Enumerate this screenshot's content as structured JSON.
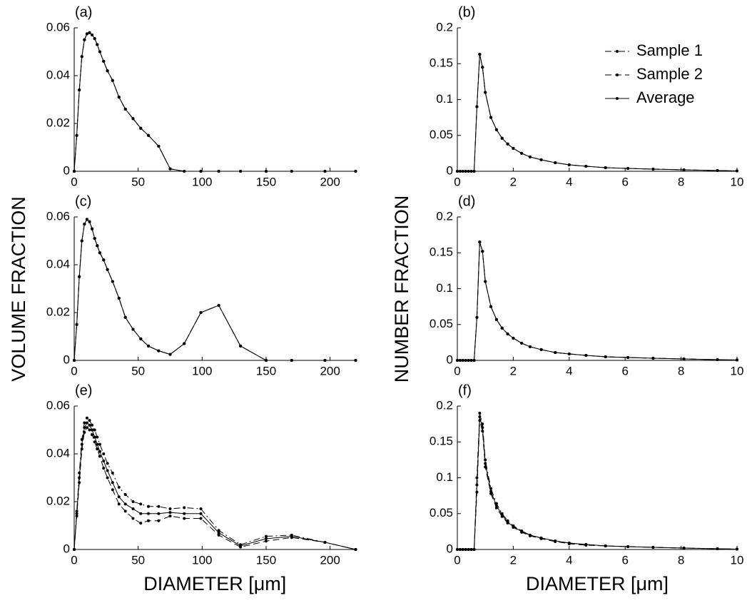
{
  "chart_data": [
    {
      "type": "line",
      "title": "(a)",
      "x": [
        0,
        2,
        4,
        6,
        8,
        10,
        12,
        14,
        16,
        18,
        20,
        23,
        26,
        30,
        35,
        40,
        46,
        52,
        58,
        66,
        75,
        86,
        99,
        113,
        130,
        150,
        170,
        196,
        220
      ],
      "series": [
        {
          "color": "#000",
          "dash": "dashdot",
          "values": [
            0,
            0.015,
            0.034,
            0.048,
            0.055,
            0.0575,
            0.058,
            0.057,
            0.0555,
            0.053,
            0.05,
            0.046,
            0.042,
            0.038,
            0.031,
            0.026,
            0.022,
            0.018,
            0.015,
            0.0105,
            0.001,
            0,
            0,
            0,
            0,
            0,
            0,
            0,
            0
          ]
        },
        {
          "color": "#000",
          "dash": "dashed",
          "values": [
            0,
            0.015,
            0.034,
            0.048,
            0.055,
            0.0575,
            0.058,
            0.057,
            0.0555,
            0.053,
            0.05,
            0.046,
            0.042,
            0.038,
            0.031,
            0.026,
            0.022,
            0.018,
            0.015,
            0.0105,
            0.001,
            0,
            0,
            0,
            0,
            0,
            0,
            0,
            0
          ]
        },
        {
          "color": "#000",
          "dash": "solid",
          "values": [
            0,
            0.015,
            0.034,
            0.048,
            0.055,
            0.0575,
            0.058,
            0.057,
            0.0555,
            0.053,
            0.05,
            0.046,
            0.042,
            0.038,
            0.031,
            0.026,
            0.022,
            0.018,
            0.015,
            0.0105,
            0.001,
            0,
            0,
            0,
            0,
            0,
            0,
            0,
            0
          ]
        }
      ],
      "xlim": [
        0,
        220
      ],
      "ylim": [
        0,
        0.06
      ],
      "xticks": [
        0,
        50,
        100,
        150,
        200
      ],
      "yticks": [
        0,
        0.02,
        0.04,
        0.06
      ]
    },
    {
      "type": "line",
      "title": "(b)",
      "legend": "upper right",
      "x": [
        0,
        0.1,
        0.2,
        0.3,
        0.4,
        0.5,
        0.6,
        0.7,
        0.8,
        0.9,
        1.0,
        1.2,
        1.4,
        1.6,
        1.8,
        2.0,
        2.3,
        2.6,
        3.0,
        3.5,
        4.0,
        4.6,
        5.3,
        6.1,
        7.0,
        8.1,
        9.3,
        10
      ],
      "series": [
        {
          "name": "Sample 1",
          "color": "#000",
          "dash": "dashdot",
          "values": [
            0,
            0,
            0,
            0,
            0,
            0,
            0,
            0.09,
            0.163,
            0.145,
            0.11,
            0.075,
            0.058,
            0.046,
            0.038,
            0.032,
            0.025,
            0.02,
            0.016,
            0.012,
            0.009,
            0.007,
            0.005,
            0.004,
            0.003,
            0.002,
            0.001,
            0.0005
          ]
        },
        {
          "name": "Sample 2",
          "color": "#000",
          "dash": "dashed",
          "values": [
            0,
            0,
            0,
            0,
            0,
            0,
            0,
            0.09,
            0.163,
            0.145,
            0.11,
            0.075,
            0.058,
            0.046,
            0.038,
            0.032,
            0.025,
            0.02,
            0.016,
            0.012,
            0.009,
            0.007,
            0.005,
            0.004,
            0.003,
            0.002,
            0.001,
            0.0005
          ]
        },
        {
          "name": "Average",
          "color": "#000",
          "dash": "solid",
          "values": [
            0,
            0,
            0,
            0,
            0,
            0,
            0,
            0.09,
            0.163,
            0.145,
            0.11,
            0.075,
            0.058,
            0.046,
            0.038,
            0.032,
            0.025,
            0.02,
            0.016,
            0.012,
            0.009,
            0.007,
            0.005,
            0.004,
            0.003,
            0.002,
            0.001,
            0.0005
          ]
        }
      ],
      "xlim": [
        0,
        10
      ],
      "ylim": [
        0,
        0.2
      ],
      "xticks": [
        0,
        2,
        4,
        6,
        8,
        10
      ],
      "yticks": [
        0,
        0.05,
        0.1,
        0.15,
        0.2
      ]
    },
    {
      "type": "line",
      "title": "(c)",
      "y_label": "VOLUME FRACTION",
      "x": [
        0,
        2,
        4,
        6,
        8,
        10,
        12,
        14,
        16,
        18,
        20,
        23,
        26,
        30,
        35,
        40,
        46,
        52,
        58,
        66,
        75,
        86,
        99,
        113,
        130,
        150,
        170,
        196,
        220
      ],
      "series": [
        {
          "color": "#000",
          "dash": "dashdot",
          "values": [
            0,
            0.015,
            0.035,
            0.05,
            0.057,
            0.059,
            0.058,
            0.055,
            0.051,
            0.048,
            0.045,
            0.042,
            0.038,
            0.033,
            0.026,
            0.018,
            0.013,
            0.009,
            0.006,
            0.004,
            0.0025,
            0.007,
            0.02,
            0.023,
            0.006,
            0,
            0,
            0,
            0
          ]
        },
        {
          "color": "#000",
          "dash": "dashed",
          "values": [
            0,
            0.015,
            0.035,
            0.05,
            0.057,
            0.059,
            0.058,
            0.055,
            0.051,
            0.048,
            0.045,
            0.042,
            0.038,
            0.033,
            0.026,
            0.018,
            0.013,
            0.009,
            0.006,
            0.004,
            0.0025,
            0.007,
            0.02,
            0.023,
            0.006,
            0,
            0,
            0,
            0
          ]
        },
        {
          "color": "#000",
          "dash": "solid",
          "values": [
            0,
            0.015,
            0.035,
            0.05,
            0.057,
            0.059,
            0.058,
            0.055,
            0.051,
            0.048,
            0.045,
            0.042,
            0.038,
            0.033,
            0.026,
            0.018,
            0.013,
            0.009,
            0.006,
            0.004,
            0.0025,
            0.007,
            0.02,
            0.023,
            0.006,
            0,
            0,
            0,
            0
          ]
        }
      ],
      "xlim": [
        0,
        220
      ],
      "ylim": [
        0,
        0.06
      ],
      "xticks": [
        0,
        50,
        100,
        150,
        200
      ],
      "yticks": [
        0,
        0.02,
        0.04,
        0.06
      ]
    },
    {
      "type": "line",
      "title": "(d)",
      "y_label": "NUMBER FRACTION",
      "x": [
        0,
        0.1,
        0.2,
        0.3,
        0.4,
        0.5,
        0.6,
        0.7,
        0.8,
        0.9,
        1.0,
        1.2,
        1.4,
        1.6,
        1.8,
        2.0,
        2.3,
        2.6,
        3.0,
        3.5,
        4.0,
        4.6,
        5.3,
        6.1,
        7.0,
        8.1,
        9.3,
        10
      ],
      "series": [
        {
          "color": "#000",
          "dash": "dashdot",
          "values": [
            0,
            0,
            0,
            0,
            0,
            0,
            0,
            0.06,
            0.165,
            0.152,
            0.11,
            0.075,
            0.057,
            0.045,
            0.037,
            0.031,
            0.024,
            0.019,
            0.015,
            0.011,
            0.009,
            0.007,
            0.005,
            0.004,
            0.003,
            0.002,
            0.001,
            0.0005
          ]
        },
        {
          "color": "#000",
          "dash": "dashed",
          "values": [
            0,
            0,
            0,
            0,
            0,
            0,
            0,
            0.06,
            0.165,
            0.152,
            0.11,
            0.075,
            0.057,
            0.045,
            0.037,
            0.031,
            0.024,
            0.019,
            0.015,
            0.011,
            0.009,
            0.007,
            0.005,
            0.004,
            0.003,
            0.002,
            0.001,
            0.0005
          ]
        },
        {
          "color": "#000",
          "dash": "solid",
          "values": [
            0,
            0,
            0,
            0,
            0,
            0,
            0,
            0.06,
            0.165,
            0.152,
            0.11,
            0.075,
            0.057,
            0.045,
            0.037,
            0.031,
            0.024,
            0.019,
            0.015,
            0.011,
            0.009,
            0.007,
            0.005,
            0.004,
            0.003,
            0.002,
            0.001,
            0.0005
          ]
        }
      ],
      "xlim": [
        0,
        10
      ],
      "ylim": [
        0,
        0.2
      ],
      "xticks": [
        0,
        2,
        4,
        6,
        8,
        10
      ],
      "yticks": [
        0,
        0.05,
        0.1,
        0.15,
        0.2
      ]
    },
    {
      "type": "line",
      "title": "(e)",
      "x_label": "DIAMETER [μm]",
      "x": [
        0,
        2,
        4,
        6,
        8,
        10,
        12,
        14,
        16,
        18,
        20,
        23,
        26,
        30,
        35,
        40,
        46,
        52,
        58,
        66,
        75,
        86,
        99,
        113,
        130,
        150,
        170,
        196,
        220
      ],
      "series": [
        {
          "color": "#000",
          "dash": "dashdot",
          "values": [
            0,
            0.016,
            0.032,
            0.046,
            0.053,
            0.055,
            0.054,
            0.052,
            0.05,
            0.047,
            0.044,
            0.04,
            0.036,
            0.032,
            0.026,
            0.023,
            0.02,
            0.019,
            0.018,
            0.018,
            0.017,
            0.0175,
            0.017,
            0.008,
            0.002,
            0.0055,
            0.006,
            0.003,
            0
          ]
        },
        {
          "color": "#000",
          "dash": "dashed",
          "values": [
            0,
            0.014,
            0.028,
            0.042,
            0.049,
            0.051,
            0.05,
            0.048,
            0.045,
            0.042,
            0.039,
            0.034,
            0.03,
            0.025,
            0.019,
            0.016,
            0.013,
            0.011,
            0.012,
            0.012,
            0.014,
            0.013,
            0.013,
            0.006,
            0.001,
            0.0035,
            0.005,
            0.003,
            0
          ]
        },
        {
          "color": "#000",
          "dash": "solid",
          "values": [
            0,
            0.015,
            0.03,
            0.044,
            0.051,
            0.053,
            0.052,
            0.05,
            0.047,
            0.044,
            0.041,
            0.037,
            0.033,
            0.028,
            0.022,
            0.019,
            0.017,
            0.015,
            0.015,
            0.015,
            0.0155,
            0.015,
            0.015,
            0.007,
            0.0015,
            0.0045,
            0.0055,
            0.003,
            0
          ]
        }
      ],
      "xlim": [
        0,
        220
      ],
      "ylim": [
        0,
        0.06
      ],
      "xticks": [
        0,
        50,
        100,
        150,
        200
      ],
      "yticks": [
        0,
        0.02,
        0.04,
        0.06
      ]
    },
    {
      "type": "line",
      "title": "(f)",
      "x_label": "DIAMETER [μm]",
      "x": [
        0,
        0.1,
        0.2,
        0.3,
        0.4,
        0.5,
        0.6,
        0.7,
        0.8,
        0.9,
        1.0,
        1.2,
        1.4,
        1.6,
        1.8,
        2.0,
        2.3,
        2.6,
        3.0,
        3.5,
        4.0,
        4.6,
        5.3,
        6.1,
        7.0,
        8.1,
        9.3,
        10
      ],
      "series": [
        {
          "color": "#000",
          "dash": "dashdot",
          "values": [
            0,
            0,
            0,
            0,
            0,
            0,
            0,
            0.1,
            0.19,
            0.175,
            0.125,
            0.085,
            0.064,
            0.05,
            0.04,
            0.033,
            0.026,
            0.02,
            0.016,
            0.012,
            0.009,
            0.007,
            0.005,
            0.004,
            0.003,
            0.002,
            0.001,
            0.0005
          ]
        },
        {
          "color": "#000",
          "dash": "dashed",
          "values": [
            0,
            0,
            0,
            0,
            0,
            0,
            0,
            0.08,
            0.18,
            0.165,
            0.115,
            0.078,
            0.058,
            0.046,
            0.037,
            0.031,
            0.024,
            0.019,
            0.015,
            0.011,
            0.008,
            0.006,
            0.005,
            0.004,
            0.003,
            0.002,
            0.001,
            0.0005
          ]
        },
        {
          "color": "#000",
          "dash": "solid",
          "values": [
            0,
            0,
            0,
            0,
            0,
            0,
            0,
            0.09,
            0.185,
            0.17,
            0.12,
            0.081,
            0.061,
            0.048,
            0.038,
            0.032,
            0.025,
            0.02,
            0.016,
            0.012,
            0.009,
            0.007,
            0.005,
            0.004,
            0.003,
            0.002,
            0.001,
            0.0005
          ]
        }
      ],
      "xlim": [
        0,
        10
      ],
      "ylim": [
        0,
        0.2
      ],
      "xticks": [
        0,
        2,
        4,
        6,
        8,
        10
      ],
      "yticks": [
        0,
        0.05,
        0.1,
        0.15,
        0.2
      ]
    }
  ]
}
